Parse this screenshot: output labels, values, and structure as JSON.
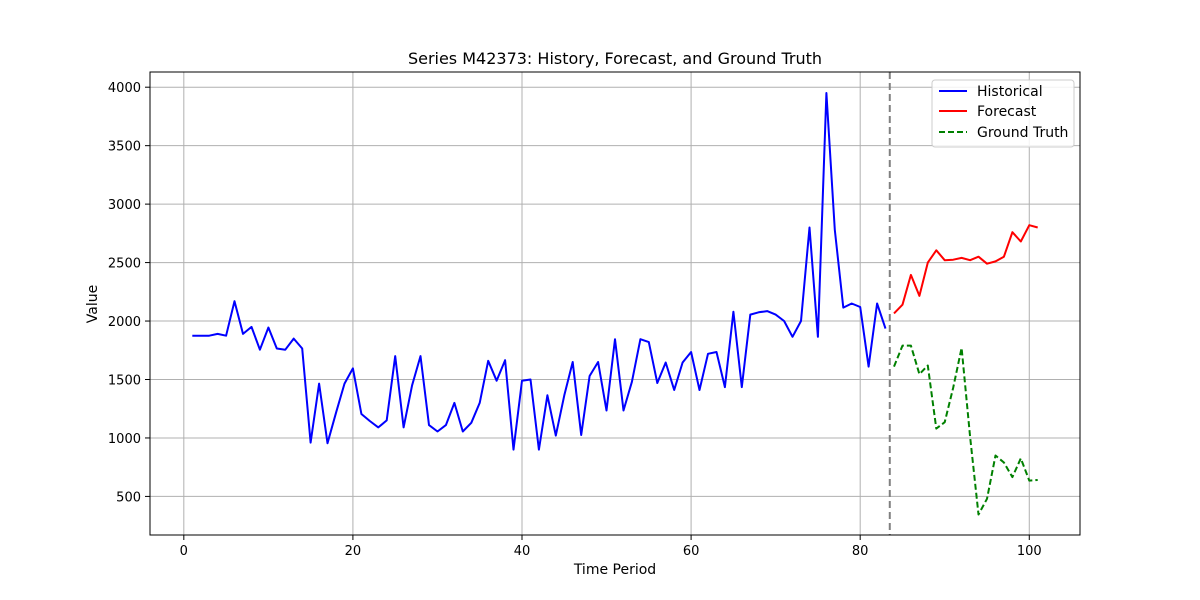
{
  "chart_data": {
    "type": "line",
    "title": "Series M42373: History, Forecast, and Ground Truth",
    "xlabel": "Time Period",
    "ylabel": "Value",
    "xlim": [
      -4,
      106
    ],
    "ylim": [
      170,
      4130
    ],
    "xticks": [
      0,
      20,
      40,
      60,
      80,
      100
    ],
    "yticks": [
      500,
      1000,
      1500,
      2000,
      2500,
      3000,
      3500,
      4000
    ],
    "grid": true,
    "legend_position": "top-right",
    "forecast_start_marker": 83.5,
    "series": [
      {
        "name": "Historical",
        "color": "#0000ff",
        "style": "solid",
        "x": [
          1,
          2,
          3,
          4,
          5,
          6,
          7,
          8,
          9,
          10,
          11,
          12,
          13,
          14,
          15,
          16,
          17,
          18,
          19,
          20,
          21,
          22,
          23,
          24,
          25,
          26,
          27,
          28,
          29,
          30,
          31,
          32,
          33,
          34,
          35,
          36,
          37,
          38,
          39,
          40,
          41,
          42,
          43,
          44,
          45,
          46,
          47,
          48,
          49,
          50,
          51,
          52,
          53,
          54,
          55,
          56,
          57,
          58,
          59,
          60,
          61,
          62,
          63,
          64,
          65,
          66,
          67,
          68,
          69,
          70,
          71,
          72,
          73,
          74,
          75,
          76,
          77,
          78,
          79,
          80,
          81,
          82,
          83
        ],
        "y": [
          1875,
          1875,
          1875,
          1890,
          1875,
          2170,
          1890,
          1950,
          1755,
          1945,
          1765,
          1755,
          1850,
          1765,
          960,
          1465,
          955,
          1215,
          1465,
          1595,
          1205,
          1145,
          1090,
          1150,
          1700,
          1090,
          1450,
          1700,
          1110,
          1055,
          1110,
          1300,
          1055,
          1130,
          1300,
          1660,
          1490,
          1665,
          900,
          1490,
          1500,
          900,
          1365,
          1020,
          1365,
          1650,
          1025,
          1530,
          1650,
          1235,
          1845,
          1235,
          1480,
          1845,
          1820,
          1470,
          1645,
          1410,
          1645,
          1735,
          1410,
          1720,
          1735,
          1435,
          2080,
          1435,
          2055,
          2075,
          2085,
          2055,
          2000,
          1865,
          2000,
          2800,
          1865,
          3950,
          2780,
          2115,
          2150,
          2120,
          1610,
          2150,
          1935
        ]
      },
      {
        "name": "Forecast",
        "color": "#ff0000",
        "style": "solid",
        "x": [
          84,
          85,
          86,
          87,
          88,
          89,
          90,
          91,
          92,
          93,
          94,
          95,
          96,
          97,
          98,
          99,
          100,
          101
        ],
        "y": [
          2065,
          2140,
          2395,
          2215,
          2500,
          2605,
          2520,
          2525,
          2540,
          2520,
          2550,
          2490,
          2510,
          2550,
          2760,
          2680,
          2820,
          2800
        ]
      },
      {
        "name": "Ground Truth",
        "color": "#008000",
        "style": "dashed",
        "x": [
          84,
          85,
          86,
          87,
          88,
          89,
          90,
          91,
          92,
          93,
          94,
          95,
          96,
          97,
          98,
          99,
          100,
          101
        ],
        "y": [
          1610,
          1790,
          1790,
          1545,
          1620,
          1080,
          1135,
          1430,
          1770,
          1010,
          345,
          480,
          850,
          790,
          665,
          825,
          635,
          640
        ]
      }
    ]
  }
}
